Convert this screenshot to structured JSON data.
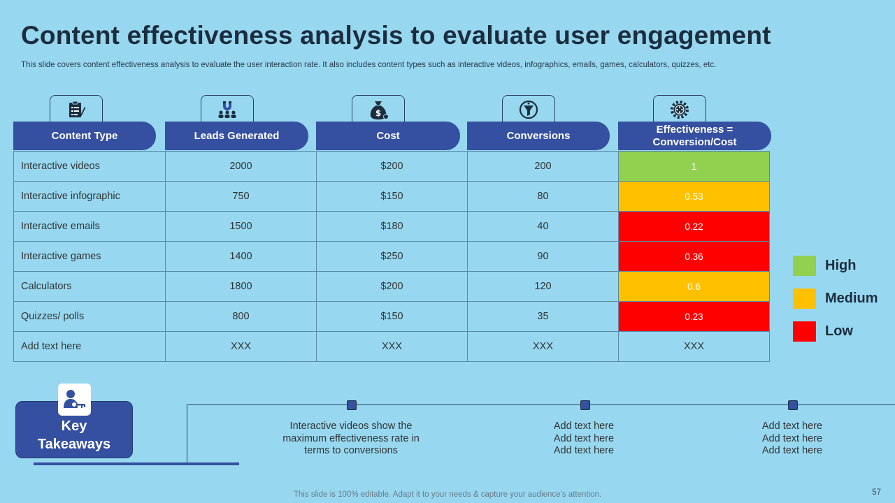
{
  "title": "Content effectiveness analysis to evaluate user engagement",
  "subtitle": "This slide covers content effectiveness analysis to evaluate the user interaction rate. It also includes content types such as interactive videos, infographics, emails, games, calculators, quizzes, etc.",
  "headers": [
    {
      "label": "Content Type",
      "icon": "clipboard-icon"
    },
    {
      "label": "Leads Generated",
      "icon": "magnet-people-icon"
    },
    {
      "label": "Cost",
      "icon": "money-bag-icon"
    },
    {
      "label": "Conversions",
      "icon": "funnel-icon"
    },
    {
      "label": "Effectiveness = Conversion/Cost",
      "icon": "gear-film-icon"
    }
  ],
  "rows": [
    {
      "type": "Interactive videos",
      "leads": "2000",
      "cost": "$200",
      "conversions": "200",
      "effectiveness": "1",
      "rating": "High"
    },
    {
      "type": "Interactive infographic",
      "leads": "750",
      "cost": "$150",
      "conversions": "80",
      "effectiveness": "0.53",
      "rating": "Medium"
    },
    {
      "type": "Interactive emails",
      "leads": "1500",
      "cost": "$180",
      "conversions": "40",
      "effectiveness": "0.22",
      "rating": "Low"
    },
    {
      "type": "Interactive games",
      "leads": "1400",
      "cost": "$250",
      "conversions": "90",
      "effectiveness": "0.36",
      "rating": "Low"
    },
    {
      "type": "Calculators",
      "leads": "1800",
      "cost": "$200",
      "conversions": "120",
      "effectiveness": "0.6",
      "rating": "Medium"
    },
    {
      "type": "Quizzes/ polls",
      "leads": "800",
      "cost": "$150",
      "conversions": "35",
      "effectiveness": "0.23",
      "rating": "Low"
    },
    {
      "type": "Add text here",
      "leads": "XXX",
      "cost": "XXX",
      "conversions": "XXX",
      "effectiveness": "XXX",
      "rating": ""
    }
  ],
  "legend": [
    {
      "label": "High",
      "color": "#92d050"
    },
    {
      "label": "Medium",
      "color": "#ffc000"
    },
    {
      "label": "Low",
      "color": "#ff0000"
    }
  ],
  "key_takeaways": {
    "title_line1": "Key",
    "title_line2": "Takeaways",
    "icon": "person-key-icon",
    "items": [
      {
        "lines": [
          "Interactive videos show the",
          "maximum effectiveness rate in",
          "terms to conversions"
        ]
      },
      {
        "lines": [
          "Add text here",
          "Add text here",
          "Add text here"
        ]
      },
      {
        "lines": [
          "Add text here",
          "Add text here",
          "Add text here"
        ]
      }
    ]
  },
  "footer": "This slide is 100% editable. Adapt it to your needs & capture your audience’s attention.",
  "page_number": "57"
}
